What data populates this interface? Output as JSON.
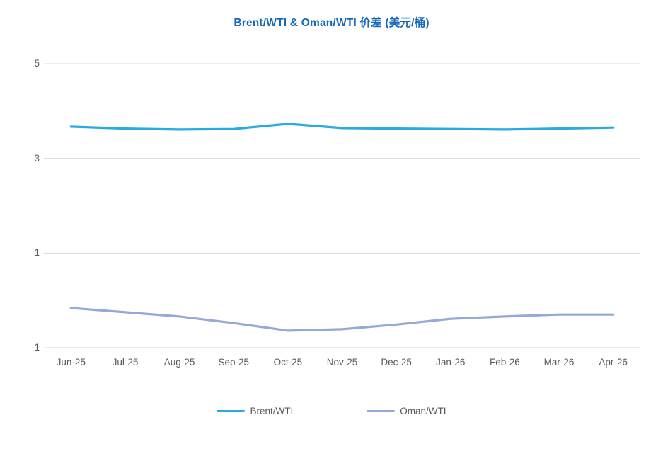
{
  "title": "Brent/WTI & Oman/WTI 价差 (美元/桶)",
  "colors": {
    "title": "#1668BA",
    "brent": "#29ABE2",
    "oman": "#95A9D8",
    "gridline": "#D9D9D9",
    "axis_text": "#595959"
  },
  "chart_data": {
    "type": "line",
    "title": "Brent/WTI & Oman/WTI 价差 (美元/桶)",
    "categories": [
      "Jun-25",
      "Jul-25",
      "Aug-25",
      "Sep-25",
      "Oct-25",
      "Nov-25",
      "Dec-25",
      "Jan-26",
      "Feb-26",
      "Mar-26",
      "Apr-26"
    ],
    "series": [
      {
        "name": "Brent/WTI",
        "color": "#29ABE2",
        "values": [
          3.67,
          3.63,
          3.61,
          3.62,
          3.73,
          3.64,
          3.63,
          3.62,
          3.61,
          3.63,
          3.65
        ]
      },
      {
        "name": "Oman/WTI",
        "color": "#95A9D8",
        "values": [
          -0.16,
          -0.25,
          -0.34,
          -0.48,
          -0.64,
          -0.61,
          -0.51,
          -0.39,
          -0.34,
          -0.3,
          -0.3
        ]
      }
    ],
    "yticks": [
      5,
      3,
      1,
      -1
    ],
    "ylim": [
      -1,
      5
    ],
    "xlabel": "",
    "ylabel": "",
    "grid": true,
    "legend_position": "bottom"
  }
}
